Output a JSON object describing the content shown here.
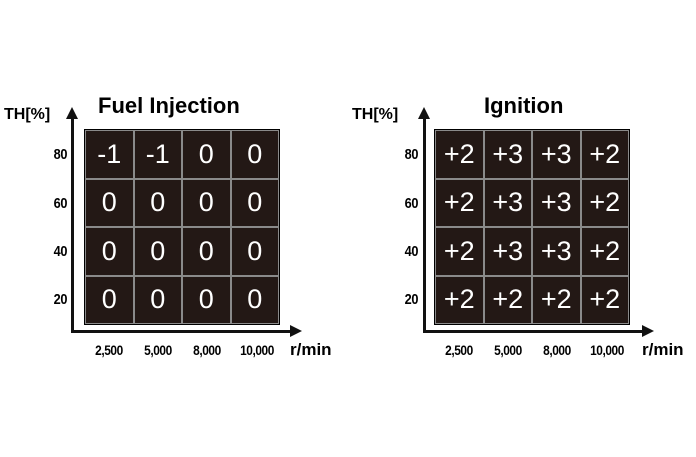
{
  "maps": [
    {
      "title": "Fuel Injection",
      "ylabel": "TH[%]",
      "xlabel": "r/min",
      "yticks": [
        "80",
        "60",
        "40",
        "20"
      ],
      "xticks": [
        "2,500",
        "5,000",
        "8,000",
        "10,000"
      ],
      "rows": [
        [
          "-1",
          "-1",
          "0",
          "0"
        ],
        [
          "0",
          "0",
          "0",
          "0"
        ],
        [
          "0",
          "0",
          "0",
          "0"
        ],
        [
          "0",
          "0",
          "0",
          "0"
        ]
      ]
    },
    {
      "title": "Ignition",
      "ylabel": "TH[%]",
      "xlabel": "r/min",
      "yticks": [
        "80",
        "60",
        "40",
        "20"
      ],
      "xticks": [
        "2,500",
        "5,000",
        "8,000",
        "10,000"
      ],
      "rows": [
        [
          "+2",
          "+3",
          "+3",
          "+2"
        ],
        [
          "+2",
          "+3",
          "+3",
          "+2"
        ],
        [
          "+2",
          "+3",
          "+3",
          "+2"
        ],
        [
          "+2",
          "+2",
          "+2",
          "+2"
        ]
      ]
    }
  ],
  "colors": {
    "cell_fill": "#231815",
    "cell_text": "#ffffff",
    "axis": "#111111"
  }
}
